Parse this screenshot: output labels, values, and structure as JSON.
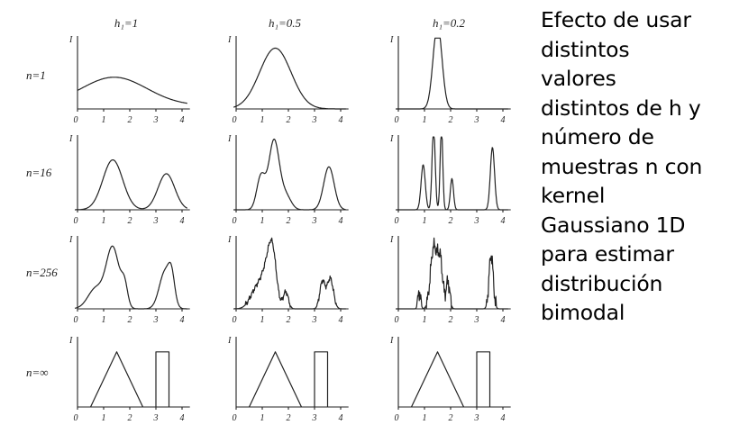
{
  "figure": {
    "column_labels": [
      "h₁=1",
      "h₁=0.5",
      "h₁=0.2"
    ],
    "row_labels": [
      "n=1",
      "n=16",
      "n=256",
      "n=∞"
    ],
    "y_axis_label": "I",
    "x_ticks": [
      "0",
      "1",
      "2",
      "3",
      "4"
    ]
  },
  "caption": {
    "lines": [
      "Efecto de usar",
      "distintos",
      "valores",
      "distintos de h y",
      "número de",
      "muestras n con",
      "kernel",
      "Gaussiano 1D",
      "para estimar",
      "distribución",
      "bimodal"
    ]
  }
}
